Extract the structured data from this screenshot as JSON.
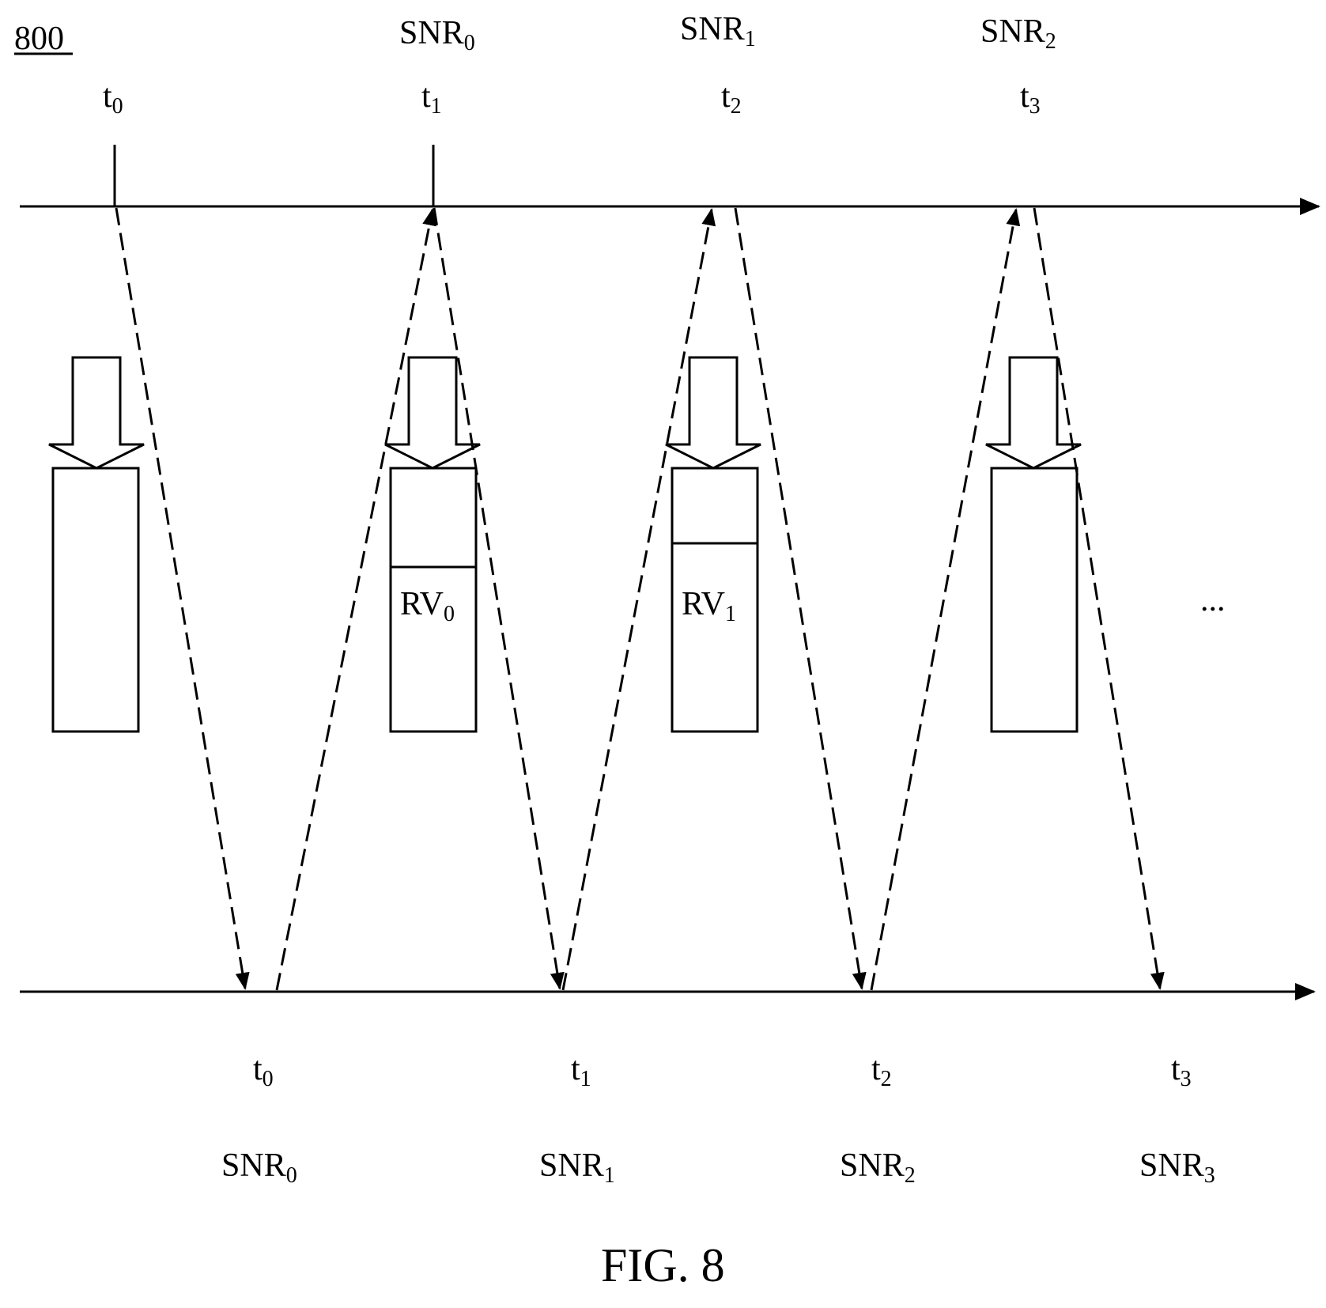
{
  "figure_ref": "800",
  "caption": "FIG. 8",
  "ellipsis": "...",
  "upper_axis": {
    "times": [
      {
        "base": "t",
        "sub": "0"
      },
      {
        "base": "t",
        "sub": "1"
      },
      {
        "base": "t",
        "sub": "2"
      },
      {
        "base": "t",
        "sub": "3"
      }
    ],
    "snr_labels": [
      {
        "base": "SNR",
        "sub": "0"
      },
      {
        "base": "SNR",
        "sub": "1"
      },
      {
        "base": "SNR",
        "sub": "2"
      }
    ]
  },
  "lower_axis": {
    "times": [
      {
        "base": "t",
        "sub": "0"
      },
      {
        "base": "t",
        "sub": "1"
      },
      {
        "base": "t",
        "sub": "2"
      },
      {
        "base": "t",
        "sub": "3"
      }
    ],
    "snr_labels": [
      {
        "base": "SNR",
        "sub": "0"
      },
      {
        "base": "SNR",
        "sub": "1"
      },
      {
        "base": "SNR",
        "sub": "2"
      },
      {
        "base": "SNR",
        "sub": "3"
      }
    ]
  },
  "blocks": [
    {
      "label_base": "",
      "label_sub": ""
    },
    {
      "label_base": "RV",
      "label_sub": "0"
    },
    {
      "label_base": "RV",
      "label_sub": "1"
    },
    {
      "label_base": "",
      "label_sub": ""
    }
  ]
}
